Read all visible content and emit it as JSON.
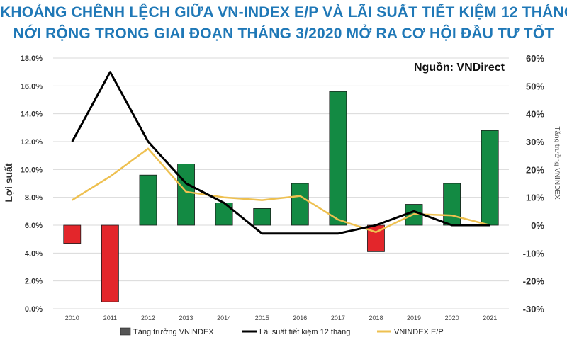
{
  "chart_data": {
    "type": "bar",
    "title_lines": [
      "KHOẢNG CHÊNH LỆCH GIỮA VN-INDEX E/P VÀ LÃI SUẤT TIẾT KIỆM 12 THÁNG",
      "NỚI RỘNG TRONG GIAI ĐOẠN THÁNG 3/2020 MỞ RA CƠ HỘI ĐẦU TƯ TỐT"
    ],
    "source": "Nguồn: VNDirect",
    "categories": [
      "2010",
      "2011",
      "2012",
      "2013",
      "2014",
      "2015",
      "2016",
      "2017",
      "2018",
      "2019",
      "2020",
      "2021"
    ],
    "ylabel": "Lợi suất",
    "y2label": "Tăng trưởng VNINDEX",
    "ylim": [
      0,
      18
    ],
    "y_ticks": [
      "0.0%",
      "2.0%",
      "4.0%",
      "6.0%",
      "8.0%",
      "10.0%",
      "12.0%",
      "14.0%",
      "16.0%",
      "18.0%"
    ],
    "y2lim": [
      -30,
      60
    ],
    "y2_ticks": [
      "-30%",
      "-20%",
      "-10%",
      "0%",
      "10%",
      "20%",
      "30%",
      "40%",
      "50%",
      "60%"
    ],
    "series": [
      {
        "name": "Tăng trưởng VNINDEX",
        "kind": "bar",
        "axis": "right",
        "values": [
          -6.5,
          -27.5,
          18,
          22,
          8,
          6,
          15,
          48,
          -9.5,
          7.5,
          15,
          34
        ],
        "color_positive": "#138a43",
        "color_negative": "#e3262b"
      },
      {
        "name": "Lãi suất tiết kiệm 12 tháng",
        "kind": "line",
        "axis": "left",
        "values": [
          12,
          17,
          12,
          9,
          7.6,
          5.4,
          5.4,
          5.4,
          6,
          7,
          6,
          6
        ],
        "color": "#000000"
      },
      {
        "name": "VNINDEX E/P",
        "kind": "line",
        "axis": "left",
        "values": [
          7.8,
          9.5,
          11.5,
          8.4,
          8,
          7.8,
          8.1,
          6.4,
          5.5,
          6.8,
          6.7,
          6
        ]
      }
    ],
    "colors": {
      "yellow_line": "#eec050",
      "axis_text": "#333333"
    }
  }
}
